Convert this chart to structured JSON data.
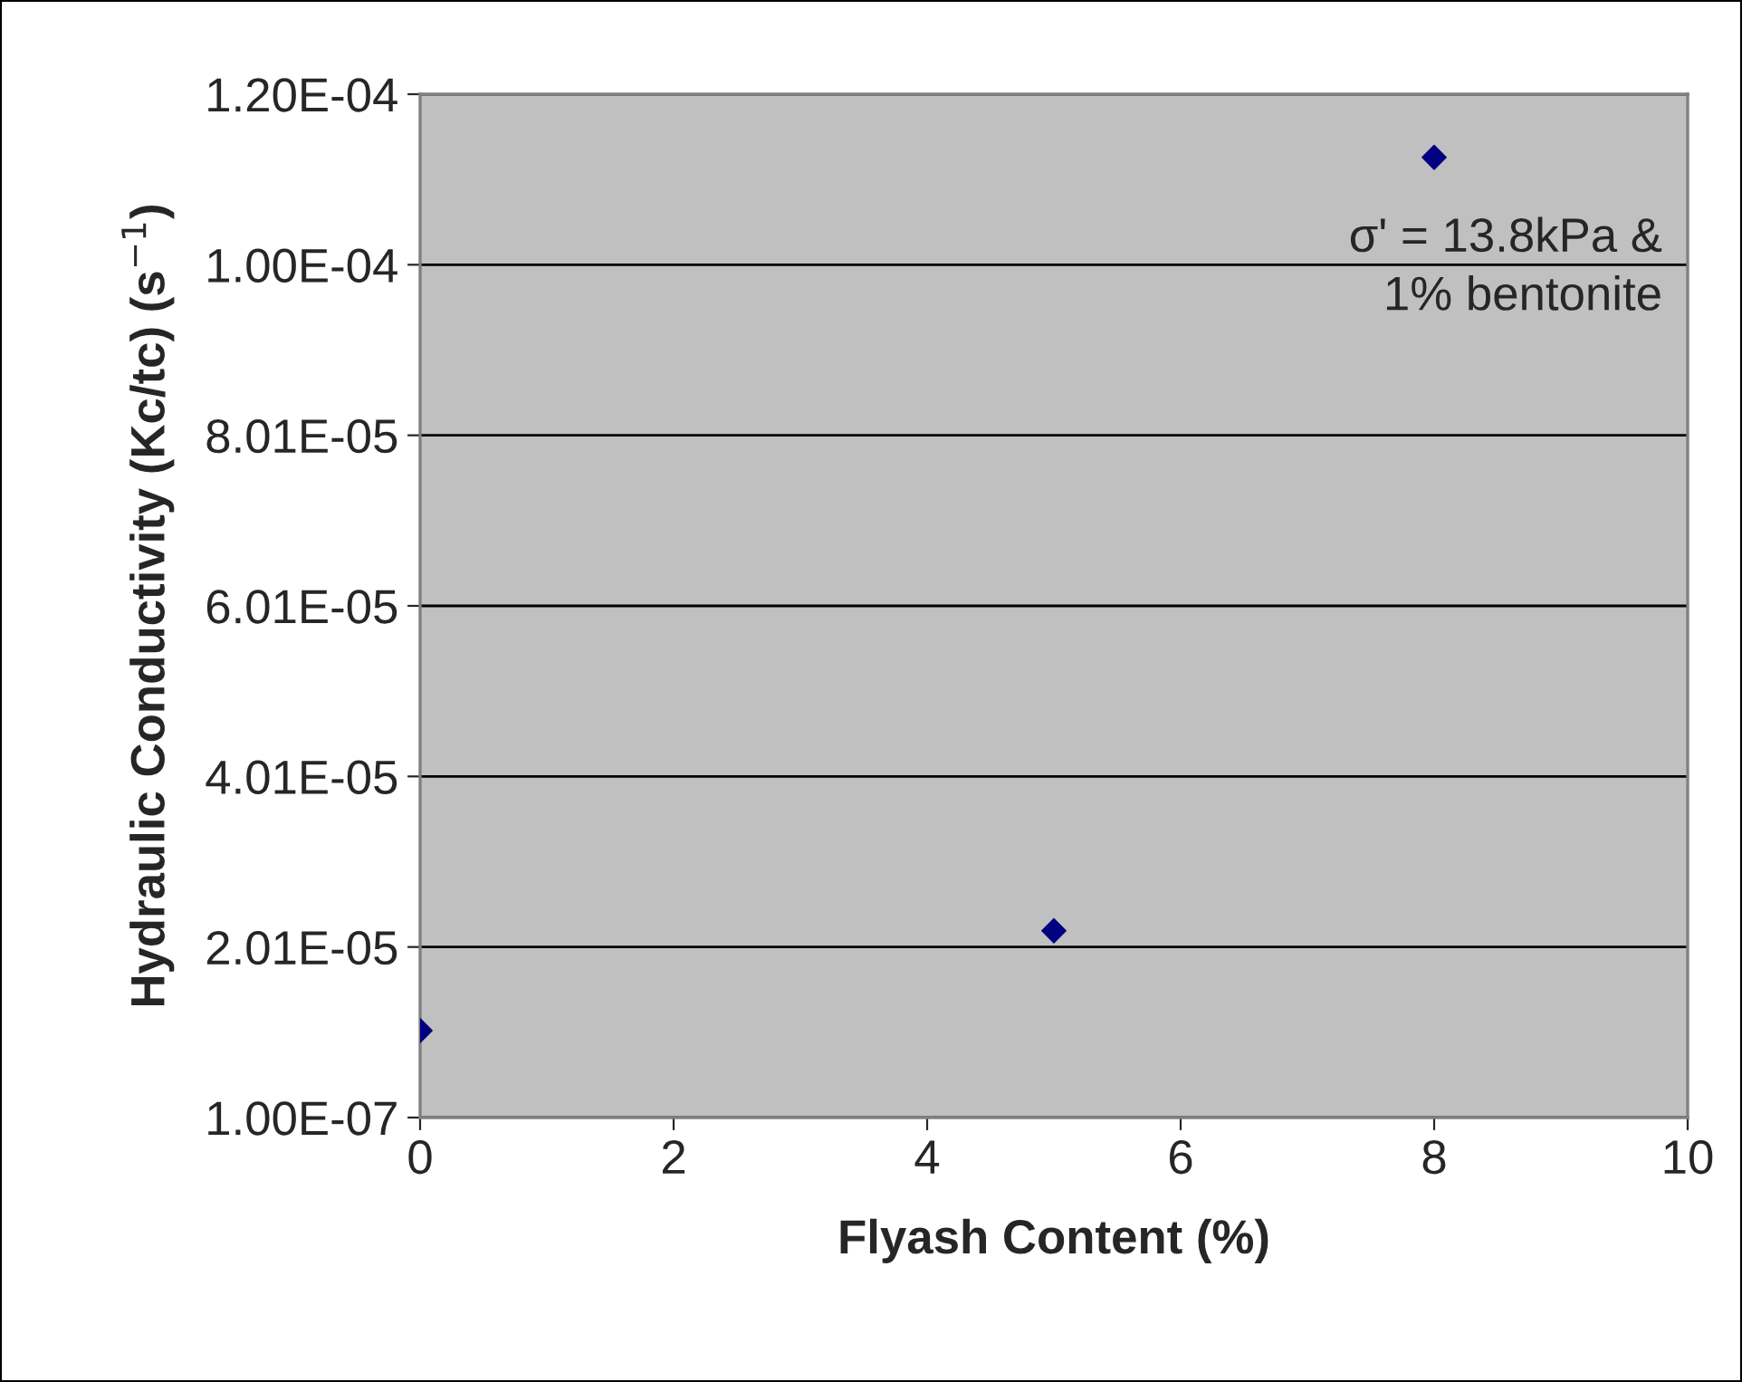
{
  "chart_data": {
    "type": "scatter",
    "xlabel": "Flyash Content (%)",
    "ylabel": "Hydraulic Conductivity (Kc/tc) (s$^{−1}$)",
    "x": [
      0,
      5,
      8
    ],
    "values": [
      1.03e-05,
      2.2e-05,
      0.0001127
    ],
    "color": "#000080",
    "marker": "diamond",
    "xlim": [
      0,
      10
    ],
    "xticks": [
      0,
      2,
      4,
      6,
      8,
      10
    ],
    "ylim": [
      1e-07,
      0.0001201
    ],
    "yticks": [
      {
        "value": 1e-07,
        "label": "1.00E-07"
      },
      {
        "value": 2.01e-05,
        "label": "2.01E-05"
      },
      {
        "value": 4.01e-05,
        "label": "4.01E-05"
      },
      {
        "value": 6.01e-05,
        "label": "6.01E-05"
      },
      {
        "value": 8.01e-05,
        "label": "8.01E-05"
      },
      {
        "value": 0.0001001,
        "label": "1.00E-04"
      },
      {
        "value": 0.0001201,
        "label": "1.20E-04"
      }
    ],
    "grid": "y",
    "annotations": [
      "σ' = 13.8kPa &\n1% bentonite"
    ]
  }
}
